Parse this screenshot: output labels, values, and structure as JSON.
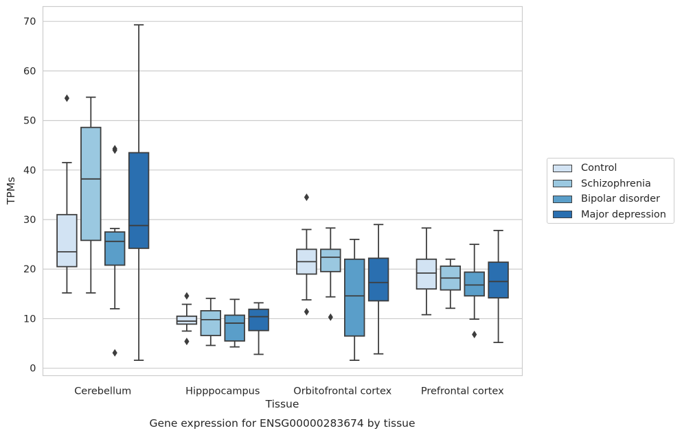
{
  "chart_data": {
    "type": "boxplot",
    "title": "Gene expression for ENSG00000283674 by tissue",
    "xlabel": "Tissue",
    "ylabel": "TPMs",
    "ylim": [
      -1.5,
      73
    ],
    "yticks": [
      0,
      10,
      20,
      30,
      40,
      50,
      60,
      70
    ],
    "grid": "horizontal",
    "legend_position": "right",
    "categories": [
      "Cerebellum",
      "Hipppocampus",
      "Orbitofrontal cortex",
      "Prefrontal cortex"
    ],
    "series": [
      {
        "name": "Control",
        "color": "#d2e3f3",
        "boxes": [
          {
            "whislo": 15.2,
            "q1": 20.5,
            "med": 23.5,
            "q3": 31.0,
            "whishi": 41.5,
            "fliers": [
              54.5
            ]
          },
          {
            "whislo": 7.5,
            "q1": 8.9,
            "med": 9.5,
            "q3": 10.5,
            "whishi": 12.9,
            "fliers": [
              14.6,
              5.4
            ]
          },
          {
            "whislo": 13.8,
            "q1": 19.0,
            "med": 21.5,
            "q3": 24.0,
            "whishi": 28.0,
            "fliers": [
              34.5,
              11.4
            ]
          },
          {
            "whislo": 10.8,
            "q1": 16.0,
            "med": 19.2,
            "q3": 22.0,
            "whishi": 28.3,
            "fliers": []
          }
        ]
      },
      {
        "name": "Schizophrenia",
        "color": "#9ac8e0",
        "boxes": [
          {
            "whislo": 15.2,
            "q1": 25.8,
            "med": 38.2,
            "q3": 48.6,
            "whishi": 54.7,
            "fliers": []
          },
          {
            "whislo": 4.6,
            "q1": 6.6,
            "med": 9.8,
            "q3": 11.6,
            "whishi": 14.1,
            "fliers": []
          },
          {
            "whislo": 14.4,
            "q1": 19.5,
            "med": 22.4,
            "q3": 24.0,
            "whishi": 28.3,
            "fliers": [
              10.3
            ]
          },
          {
            "whislo": 12.1,
            "q1": 15.8,
            "med": 18.2,
            "q3": 20.6,
            "whishi": 22.0,
            "fliers": []
          }
        ]
      },
      {
        "name": "Bipolar disorder",
        "color": "#5a9ec9",
        "boxes": [
          {
            "whislo": 12.0,
            "q1": 20.8,
            "med": 25.6,
            "q3": 27.5,
            "whishi": 28.2,
            "fliers": [
              44.0,
              44.3,
              3.1
            ]
          },
          {
            "whislo": 4.3,
            "q1": 5.5,
            "med": 9.1,
            "q3": 10.7,
            "whishi": 13.9,
            "fliers": []
          },
          {
            "whislo": 1.6,
            "q1": 6.5,
            "med": 14.6,
            "q3": 22.0,
            "whishi": 26.0,
            "fliers": []
          },
          {
            "whislo": 9.9,
            "q1": 14.6,
            "med": 16.8,
            "q3": 19.4,
            "whishi": 25.0,
            "fliers": [
              6.8
            ]
          }
        ]
      },
      {
        "name": "Major depression",
        "color": "#2a6fb0",
        "boxes": [
          {
            "whislo": 1.6,
            "q1": 24.2,
            "med": 28.8,
            "q3": 43.5,
            "whishi": 69.3,
            "fliers": []
          },
          {
            "whislo": 2.8,
            "q1": 7.6,
            "med": 10.4,
            "q3": 11.9,
            "whishi": 13.2,
            "fliers": []
          },
          {
            "whislo": 2.9,
            "q1": 13.6,
            "med": 17.3,
            "q3": 22.2,
            "whishi": 29.0,
            "fliers": []
          },
          {
            "whislo": 5.2,
            "q1": 14.2,
            "med": 17.5,
            "q3": 21.4,
            "whishi": 27.8,
            "fliers": []
          }
        ]
      }
    ]
  }
}
